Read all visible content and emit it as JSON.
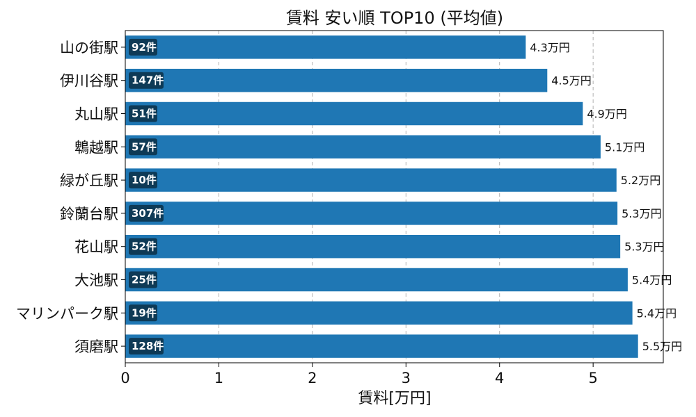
{
  "chart_data": {
    "type": "bar",
    "orientation": "horizontal",
    "title": "賃料 安い順 TOP10 (平均値)",
    "xlabel": "賃料[万円]",
    "ylabel": "",
    "xlim": [
      0,
      5.75
    ],
    "xticks": [
      0,
      1,
      2,
      3,
      4,
      5
    ],
    "grid": "x-dashed",
    "categories": [
      "山の街駅",
      "伊川谷駅",
      "丸山駅",
      "鵯越駅",
      "緑が丘駅",
      "鈴蘭台駅",
      "花山駅",
      "大池駅",
      "マリンパーク駅",
      "須磨駅"
    ],
    "values": [
      4.28,
      4.51,
      4.89,
      5.08,
      5.25,
      5.26,
      5.29,
      5.37,
      5.42,
      5.48
    ],
    "value_labels": [
      "4.3万円",
      "4.5万円",
      "4.9万円",
      "5.1万円",
      "5.2万円",
      "5.3万円",
      "5.3万円",
      "5.4万円",
      "5.4万円",
      "5.5万円"
    ],
    "counts": [
      "92件",
      "147件",
      "51件",
      "57件",
      "10件",
      "307件",
      "52件",
      "25件",
      "19件",
      "128件"
    ],
    "bar_color": "#1f77b4",
    "badge_color": "#0e3a56"
  }
}
